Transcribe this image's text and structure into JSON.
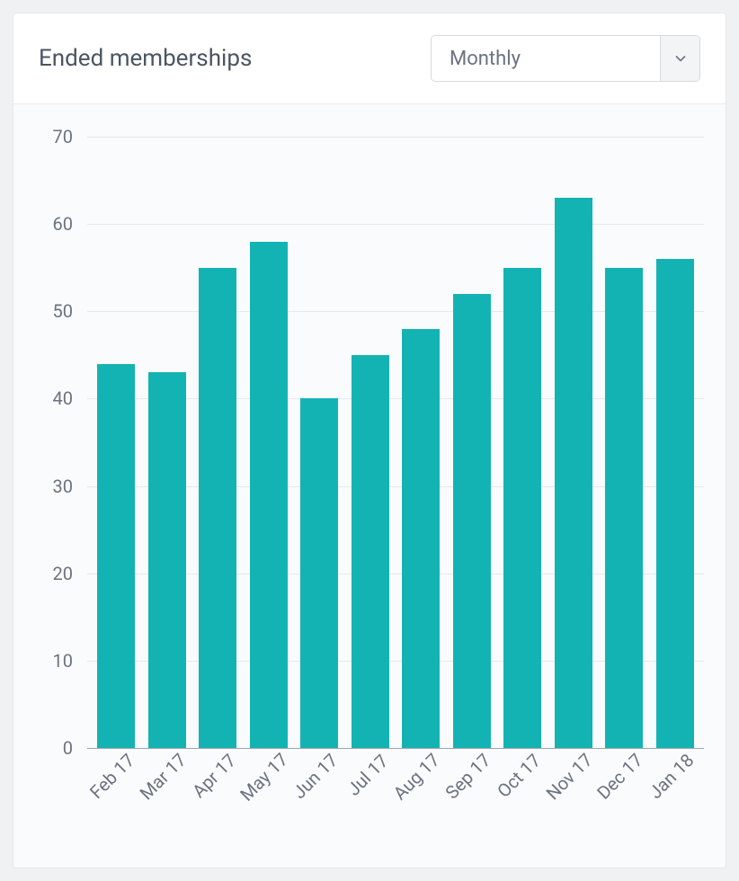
{
  "header": {
    "title": "Ended memberships",
    "dropdown": {
      "selected": "Monthly"
    }
  },
  "chart": {
    "type": "bar",
    "categories": [
      "Feb 17",
      "Mar 17",
      "Apr 17",
      "May 17",
      "Jun 17",
      "Jul 17",
      "Aug 17",
      "Sep 17",
      "Oct 17",
      "Nov 17",
      "Dec 17",
      "Jan 18"
    ],
    "values": [
      44,
      43,
      55,
      58,
      40,
      45,
      48,
      52,
      55,
      63,
      55,
      56
    ],
    "bar_color": "#14b3b3",
    "y": {
      "min": 0,
      "max": 70,
      "ticks": [
        0,
        10,
        20,
        30,
        40,
        50,
        60,
        70
      ]
    },
    "grid_color": "#e6e8eb",
    "baseline_color": "#9ca3af",
    "background_color": "#fafbfc",
    "axis_label_color": "#6b7280",
    "axis_font_size": 20,
    "bar_width_ratio": 0.74,
    "x_label_rotation_deg": -45
  },
  "card": {
    "border_color": "#e5e7ea",
    "page_background": "#f0f1f2"
  }
}
